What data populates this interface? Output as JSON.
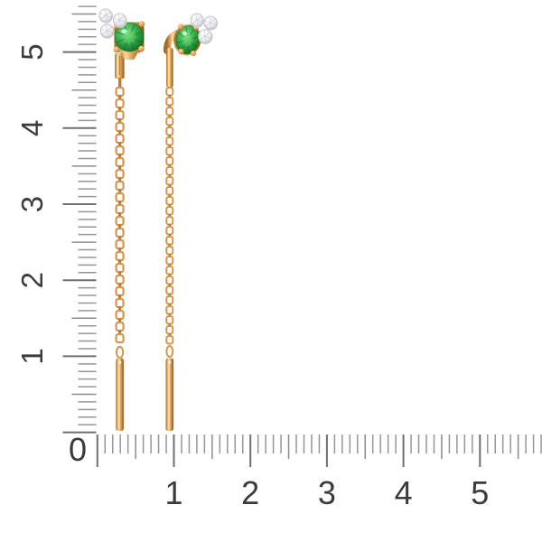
{
  "photo": {
    "subject": "pair of gold threader chain earrings with green gemstone and diamond cluster studs",
    "left_item": "left-earring-cable-chain-threader",
    "right_item": "right-earring-box-chain-threader"
  },
  "ruler": {
    "origin_label": "0",
    "vertical_labels": [
      "1",
      "2",
      "3",
      "4",
      "5"
    ],
    "horizontal_labels": [
      "1",
      "2",
      "3",
      "4",
      "5"
    ],
    "minor_divisions_per_unit": 10,
    "colors": {
      "tick_minor": "#969696",
      "tick_medium": "#8B8B8B",
      "tick_major": "#6F6F6F",
      "label": "#3B3B3B"
    }
  },
  "colors": {
    "background": "#FFFFFF",
    "white": "#FFFFFF",
    "gold_light": "#F9D9A0",
    "gold_mid": "#DD9C4E",
    "gold_dark": "#A5691F",
    "gold_deep": "#8F5518",
    "gold_link": "#D6954A",
    "gold_conn": "#BE7D33",
    "gem_light": "#7FE487",
    "gem_mid": "#2FA344",
    "gem_dark": "#0E6120",
    "gem_highlight": "#D8F8DB",
    "diamond_light": "#FFFFFF",
    "diamond_mid": "#ECEDF0",
    "diamond_dark": "#C9CBD2",
    "diamond_back": "#D3D6DC",
    "diamond_rim": "#B9BCC4"
  }
}
